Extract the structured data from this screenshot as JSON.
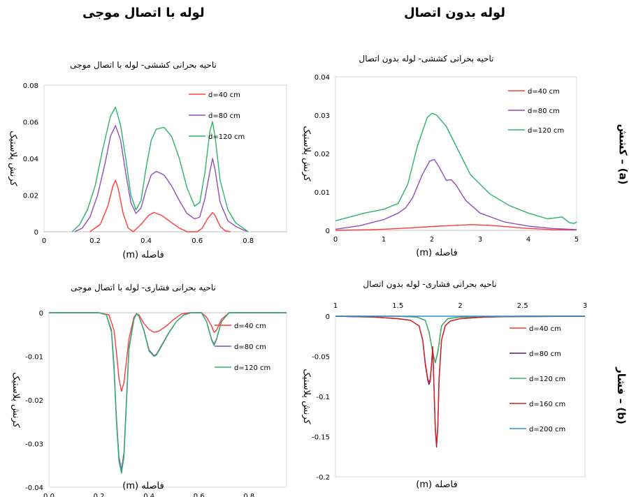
{
  "headers": {
    "left": "لوله با اتصال موجی",
    "right": "لوله بدون اتصال"
  },
  "row_labels": {
    "top": "(a) – کشش",
    "bottom": "(b) – فشار"
  },
  "colors": {
    "d40": "#ff3b3b",
    "d80": "#8c4fbf",
    "d120": "#2db36b",
    "d160": "#d42020",
    "d200": "#2f8fd8",
    "d80_dark": "#5a1e6e"
  },
  "chart_data": [
    {
      "id": "tl",
      "type": "line",
      "title": "ناحیه بحرانی کششی- لوله با اتصال موجی",
      "xlabel": "فاصله (m)",
      "ylabel": "کرنش پلاستیک",
      "xlim": [
        0,
        0.95
      ],
      "ylim": [
        0,
        0.08
      ],
      "xticks": [
        0,
        0.2,
        0.4,
        0.6,
        0.8
      ],
      "xtick_labels": [
        "0",
        "0.2",
        "0.4",
        "0.6",
        "0.8"
      ],
      "yticks": [
        0,
        0.02,
        0.04,
        0.06,
        0.08
      ],
      "ytick_labels": [
        "0",
        "0.02",
        "0.04",
        "0.06",
        "0.08"
      ],
      "legend_position": "top-right",
      "series": [
        {
          "name": "d=40 cm",
          "color_key": "d40",
          "x": [
            0.18,
            0.22,
            0.25,
            0.27,
            0.28,
            0.29,
            0.31,
            0.33,
            0.35,
            0.38,
            0.41,
            0.43,
            0.46,
            0.5,
            0.53,
            0.56,
            0.6,
            0.62,
            0.64,
            0.66,
            0.67,
            0.69,
            0.71,
            0.73
          ],
          "y": [
            0,
            0.004,
            0.014,
            0.025,
            0.028,
            0.024,
            0.01,
            0.002,
            0,
            0.004,
            0.009,
            0.0105,
            0.009,
            0.005,
            0.002,
            0,
            0,
            0.002,
            0.007,
            0.0105,
            0.009,
            0.003,
            0.0005,
            0
          ]
        },
        {
          "name": "d=80 cm",
          "color_key": "d80",
          "x": [
            0.12,
            0.15,
            0.18,
            0.21,
            0.24,
            0.26,
            0.28,
            0.3,
            0.32,
            0.34,
            0.36,
            0.38,
            0.4,
            0.42,
            0.44,
            0.47,
            0.5,
            0.53,
            0.56,
            0.59,
            0.61,
            0.63,
            0.65,
            0.66,
            0.67,
            0.69,
            0.72,
            0.75,
            0.78,
            0.8
          ],
          "y": [
            0,
            0.002,
            0.008,
            0.02,
            0.038,
            0.052,
            0.058,
            0.05,
            0.032,
            0.016,
            0.01,
            0.013,
            0.023,
            0.031,
            0.033,
            0.031,
            0.025,
            0.017,
            0.01,
            0.007,
            0.008,
            0.018,
            0.033,
            0.04,
            0.034,
            0.016,
            0.006,
            0.003,
            0.001,
            0
          ]
        },
        {
          "name": "d=120 cm",
          "color_key": "d120",
          "x": [
            0.11,
            0.14,
            0.17,
            0.2,
            0.23,
            0.26,
            0.28,
            0.3,
            0.32,
            0.34,
            0.36,
            0.38,
            0.4,
            0.42,
            0.44,
            0.47,
            0.5,
            0.53,
            0.56,
            0.59,
            0.61,
            0.63,
            0.65,
            0.66,
            0.67,
            0.69,
            0.72,
            0.75,
            0.78,
            0.8
          ],
          "y": [
            0,
            0.004,
            0.012,
            0.025,
            0.045,
            0.063,
            0.068,
            0.058,
            0.04,
            0.02,
            0.012,
            0.017,
            0.035,
            0.05,
            0.056,
            0.057,
            0.052,
            0.04,
            0.024,
            0.014,
            0.016,
            0.032,
            0.055,
            0.06,
            0.052,
            0.028,
            0.012,
            0.005,
            0.002,
            0
          ]
        }
      ]
    },
    {
      "id": "tr",
      "type": "line",
      "title": "ناحیه بحرانی کششی- لوله بدون اتصال",
      "xlabel": "فاصله (m)",
      "ylabel": "کرنش پلاستیک",
      "xlim": [
        0,
        5
      ],
      "ylim": [
        0,
        0.04
      ],
      "xticks": [
        0,
        1,
        2,
        3,
        4,
        5
      ],
      "xtick_labels": [
        "0",
        "1",
        "2",
        "3",
        "4",
        "5"
      ],
      "yticks": [
        0,
        0.01,
        0.02,
        0.03,
        0.04
      ],
      "ytick_labels": [
        "0",
        "0.01",
        "0.02",
        "0.03",
        "0.04"
      ],
      "legend_position": "top-right",
      "series": [
        {
          "name": "d=40 cm",
          "color_key": "d40",
          "x": [
            0,
            0.5,
            1,
            1.5,
            2,
            2.5,
            2.8,
            3.2,
            3.6,
            4,
            4.5,
            5
          ],
          "y": [
            0,
            0.0001,
            0.0003,
            0.0006,
            0.001,
            0.0013,
            0.0015,
            0.0013,
            0.0009,
            0.0005,
            0.0002,
            0.0001
          ]
        },
        {
          "name": "d=80 cm",
          "color_key": "d80",
          "x": [
            0,
            0.5,
            1,
            1.3,
            1.45,
            1.6,
            1.8,
            1.95,
            2.05,
            2.15,
            2.3,
            2.4,
            2.5,
            2.7,
            3,
            3.5,
            4,
            4.5,
            5
          ],
          "y": [
            0.0003,
            0.0012,
            0.0028,
            0.0045,
            0.0058,
            0.0085,
            0.0145,
            0.018,
            0.0185,
            0.0165,
            0.013,
            0.0132,
            0.0118,
            0.0078,
            0.0045,
            0.0022,
            0.0011,
            0.0005,
            0.0002
          ]
        },
        {
          "name": "d=120 cm",
          "color_key": "d120",
          "x": [
            0,
            0.3,
            0.6,
            1,
            1.3,
            1.5,
            1.7,
            1.9,
            2,
            2.1,
            2.3,
            2.5,
            2.8,
            3.2,
            3.6,
            4,
            4.4,
            4.7,
            4.85,
            4.95,
            5
          ],
          "y": [
            0.0025,
            0.0035,
            0.0045,
            0.0055,
            0.007,
            0.012,
            0.022,
            0.0293,
            0.0305,
            0.03,
            0.027,
            0.022,
            0.0145,
            0.0095,
            0.0065,
            0.0045,
            0.003,
            0.0035,
            0.002,
            0.0018,
            0.0022
          ]
        }
      ]
    },
    {
      "id": "bl",
      "type": "line",
      "title": "ناحیه بحرانی فشاری- لوله با اتصال موجی",
      "xlabel": "فاصله (m)",
      "ylabel": "کرنش پلاستیک",
      "xlim": [
        0,
        0.95
      ],
      "ylim": [
        -0.04,
        0
      ],
      "xticks": [
        0,
        0.2,
        0.4,
        0.6,
        0.8
      ],
      "xtick_labels": [
        "0.0",
        "0.2",
        "0.4",
        "0.6",
        "0.8"
      ],
      "yticks": [
        0,
        -0.01,
        -0.02,
        -0.03,
        -0.04
      ],
      "ytick_labels": [
        "0",
        "-0.01",
        "-0.02",
        "-0.03",
        "-0.04"
      ],
      "legend_position": "right",
      "series": [
        {
          "name": "d=40 cm",
          "color_key": "d40",
          "x": [
            0,
            0.2,
            0.24,
            0.26,
            0.27,
            0.28,
            0.29,
            0.3,
            0.32,
            0.34,
            0.35,
            0.36,
            0.38,
            0.4,
            0.42,
            0.44,
            0.47,
            0.5,
            0.53,
            0.56,
            0.61,
            0.63,
            0.65,
            0.66,
            0.67,
            0.69,
            0.72,
            0.95
          ],
          "y": [
            0,
            0,
            -0.0005,
            -0.004,
            -0.009,
            -0.015,
            -0.018,
            -0.016,
            -0.006,
            -0.001,
            -0.0002,
            -0.0005,
            -0.0025,
            -0.0038,
            -0.0045,
            -0.0042,
            -0.003,
            -0.0015,
            -0.0003,
            0,
            0,
            -0.001,
            -0.003,
            -0.0045,
            -0.004,
            -0.0015,
            0,
            0
          ]
        },
        {
          "name": "d=80 cm",
          "color_key": "d80",
          "x": [
            0,
            0.2,
            0.23,
            0.25,
            0.26,
            0.27,
            0.28,
            0.29,
            0.3,
            0.31,
            0.32,
            0.34,
            0.35,
            0.36,
            0.38,
            0.4,
            0.42,
            0.43,
            0.45,
            0.48,
            0.51,
            0.54,
            0.57,
            0.61,
            0.63,
            0.65,
            0.66,
            0.67,
            0.69,
            0.72,
            0.95
          ],
          "y": [
            0,
            0,
            -0.0005,
            -0.004,
            -0.012,
            -0.024,
            -0.033,
            -0.036,
            -0.032,
            -0.02,
            -0.008,
            -0.0015,
            -0.0002,
            -0.0008,
            -0.004,
            -0.0085,
            -0.0098,
            -0.0095,
            -0.0075,
            -0.0045,
            -0.002,
            -0.0005,
            0,
            0,
            -0.002,
            -0.006,
            -0.0072,
            -0.006,
            -0.002,
            0,
            0
          ]
        },
        {
          "name": "d=120 cm",
          "color_key": "d120",
          "x": [
            0,
            0.2,
            0.23,
            0.25,
            0.26,
            0.27,
            0.28,
            0.29,
            0.3,
            0.31,
            0.32,
            0.34,
            0.35,
            0.36,
            0.38,
            0.4,
            0.42,
            0.43,
            0.45,
            0.48,
            0.51,
            0.54,
            0.57,
            0.61,
            0.63,
            0.65,
            0.66,
            0.67,
            0.69,
            0.72,
            0.95
          ],
          "y": [
            0,
            0,
            -0.0005,
            -0.0045,
            -0.013,
            -0.025,
            -0.034,
            -0.0368,
            -0.033,
            -0.021,
            -0.0085,
            -0.0015,
            -0.0002,
            -0.0008,
            -0.0042,
            -0.0088,
            -0.01,
            -0.0097,
            -0.0077,
            -0.0046,
            -0.002,
            -0.0005,
            0,
            0,
            -0.002,
            -0.0062,
            -0.0075,
            -0.0062,
            -0.002,
            0,
            0
          ]
        }
      ]
    },
    {
      "id": "br",
      "type": "line",
      "title": "ناحیه بحرانی فشاری- لوله بدون اتصال",
      "xlabel": "فاصله (m)",
      "ylabel": "کرنش پلاستیک",
      "xlim": [
        1,
        3
      ],
      "ylim": [
        -0.2,
        0
      ],
      "xticks": [
        1,
        1.5,
        2,
        2.5,
        3
      ],
      "xtick_labels": [
        "1",
        "1.5",
        "2",
        "2.5",
        "3"
      ],
      "yticks": [
        0,
        -0.05,
        -0.1,
        -0.15,
        -0.2
      ],
      "ytick_labels": [
        "0",
        "-0.05",
        "-0.1",
        "-0.15",
        "-0.2"
      ],
      "legend_position": "right",
      "series": [
        {
          "name": "d=40 cm",
          "color_key": "d40",
          "x": [
            1,
            1.5,
            1.65,
            1.72,
            1.75,
            1.78,
            1.8,
            1.82,
            1.85,
            1.9,
            2,
            3
          ],
          "y": [
            0,
            0,
            -0.001,
            -0.005,
            -0.02,
            -0.045,
            -0.058,
            -0.045,
            -0.012,
            -0.003,
            -0.001,
            0
          ]
        },
        {
          "name": "d=80 cm",
          "color_key": "d80_dark",
          "x": [
            1,
            1.3,
            1.5,
            1.6,
            1.67,
            1.7,
            1.72,
            1.74,
            1.75,
            1.76,
            1.78,
            1.79,
            1.8,
            1.81,
            1.82,
            1.83,
            1.85,
            1.88,
            1.92,
            2,
            2.2,
            2.5,
            3
          ],
          "y": [
            0,
            -0.001,
            -0.003,
            -0.005,
            -0.012,
            -0.03,
            -0.06,
            -0.08,
            -0.085,
            -0.08,
            -0.04,
            -0.09,
            -0.14,
            -0.163,
            -0.14,
            -0.08,
            -0.03,
            -0.012,
            -0.006,
            -0.003,
            -0.001,
            0,
            0
          ]
        },
        {
          "name": "d=120 cm",
          "color_key": "d120",
          "x": [
            1,
            1.5,
            1.65,
            1.72,
            1.75,
            1.78,
            1.8,
            1.82,
            1.85,
            1.9,
            2,
            3
          ],
          "y": [
            0,
            0,
            -0.001,
            -0.005,
            -0.02,
            -0.045,
            -0.058,
            -0.045,
            -0.012,
            -0.003,
            -0.001,
            0
          ]
        },
        {
          "name": "d=160 cm",
          "color_key": "d160",
          "x": [
            1,
            1.3,
            1.5,
            1.6,
            1.67,
            1.7,
            1.72,
            1.74,
            1.75,
            1.76,
            1.78,
            1.79,
            1.8,
            1.81,
            1.82,
            1.83,
            1.85,
            1.88,
            1.92,
            2,
            2.2,
            2.5,
            3
          ],
          "y": [
            0,
            -0.001,
            -0.003,
            -0.005,
            -0.012,
            -0.03,
            -0.058,
            -0.078,
            -0.083,
            -0.078,
            -0.038,
            -0.088,
            -0.138,
            -0.16,
            -0.138,
            -0.078,
            -0.03,
            -0.012,
            -0.006,
            -0.003,
            -0.001,
            0,
            0
          ]
        },
        {
          "name": "d=200 cm",
          "color_key": "d200",
          "x": [
            1,
            1.5,
            1.7,
            1.8,
            1.9,
            2,
            2.5,
            3
          ],
          "y": [
            0,
            0,
            0,
            0,
            0,
            0,
            0,
            0
          ]
        }
      ]
    }
  ]
}
